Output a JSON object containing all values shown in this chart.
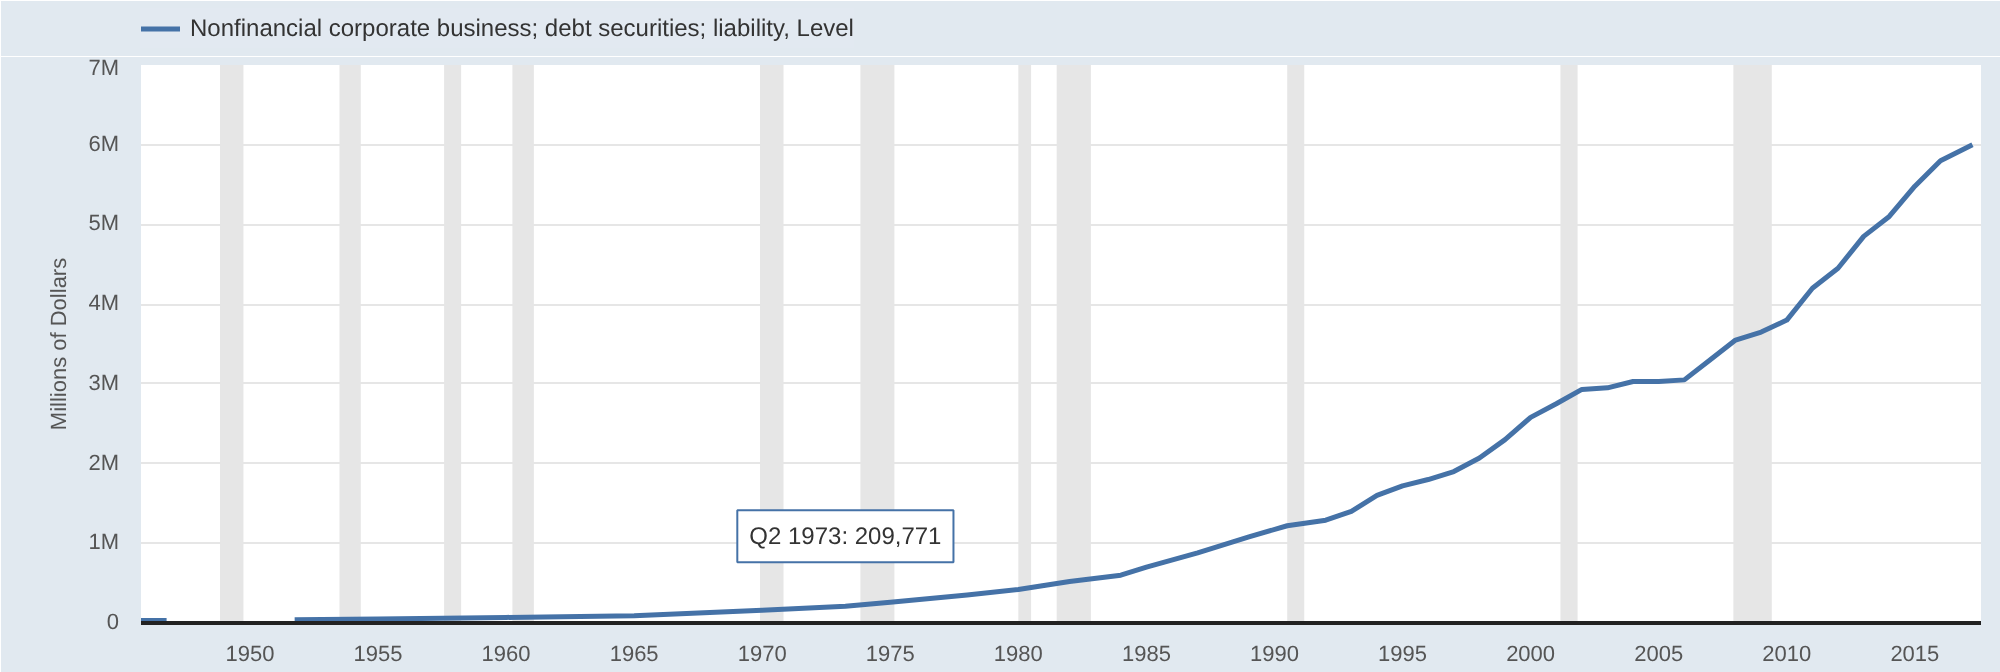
{
  "chart_data": {
    "type": "line",
    "ylabel": "Millions of Dollars",
    "x": [
      "1945-10",
      "1946-10",
      "1947-01",
      "1951-10",
      "1955-01",
      "1960-01",
      "1965-01",
      "1970-01",
      "1973-04",
      "1975-01",
      "1978-01",
      "1980-01",
      "1982-01",
      "1984-01",
      "1985-01",
      "1987-01",
      "1989-01",
      "1990-07",
      "1992-01",
      "1993-01",
      "1994-01",
      "1995-01",
      "1996-01",
      "1997-01",
      "1998-01",
      "1999-01",
      "2000-01",
      "2001-01",
      "2002-01",
      "2003-01",
      "2004-01",
      "2005-01",
      "2006-01",
      "2007-01",
      "2008-01",
      "2009-01",
      "2010-01",
      "2011-01",
      "2012-01",
      "2013-01",
      "2014-01",
      "2015-01",
      "2016-01",
      "2017-04"
    ],
    "series": [
      {
        "name": "Nonfinancial corporate business; debt securities; liability, Level",
        "color": "#4572a7",
        "values": [
          30000,
          30000,
          null,
          40000,
          50000,
          70000,
          90000,
          160000,
          209771,
          260000,
          350000,
          420000,
          520000,
          600000,
          700000,
          880000,
          1080000,
          1220000,
          1290000,
          1400000,
          1600000,
          1720000,
          1800000,
          1900000,
          2070000,
          2300000,
          2580000,
          2750000,
          2930000,
          2950000,
          3030000,
          3030000,
          3050000,
          3300000,
          3550000,
          3650000,
          3800000,
          4200000,
          4450000,
          4850000,
          5100000,
          5480000,
          5800000,
          6000000
        ]
      }
    ],
    "xlim": [
      "1945-10",
      "2017-08"
    ],
    "xticks": [
      "1950",
      "1955",
      "1960",
      "1965",
      "1970",
      "1975",
      "1980",
      "1985",
      "1990",
      "1995",
      "2000",
      "2005",
      "2010",
      "2015"
    ],
    "ylim": [
      0,
      7000000
    ],
    "yticks": [
      0,
      {
        "value": 1000000,
        "label": "1M"
      },
      {
        "value": 2000000,
        "label": "2M"
      },
      {
        "value": 3000000,
        "label": "3M"
      },
      {
        "value": 4000000,
        "label": "4M"
      },
      {
        "value": 5000000,
        "label": "5M"
      },
      {
        "value": 6000000,
        "label": "6M"
      },
      {
        "value": 7000000,
        "label": "7M"
      }
    ],
    "grid": "y",
    "legend": "top left",
    "line_style": "solid",
    "marker": "none",
    "bands": [
      {
        "axis": "x",
        "from": "1948-11",
        "to": "1949-10",
        "color": "#e6e6e6"
      },
      {
        "axis": "x",
        "from": "1953-07",
        "to": "1954-05",
        "color": "#e6e6e6"
      },
      {
        "axis": "x",
        "from": "1957-08",
        "to": "1958-04",
        "color": "#e6e6e6"
      },
      {
        "axis": "x",
        "from": "1960-04",
        "to": "1961-02",
        "color": "#e6e6e6"
      },
      {
        "axis": "x",
        "from": "1969-12",
        "to": "1970-11",
        "color": "#e6e6e6"
      },
      {
        "axis": "x",
        "from": "1973-11",
        "to": "1975-03",
        "color": "#e6e6e6"
      },
      {
        "axis": "x",
        "from": "1980-01",
        "to": "1980-07",
        "color": "#e6e6e6"
      },
      {
        "axis": "x",
        "from": "1981-07",
        "to": "1982-11",
        "color": "#e6e6e6"
      },
      {
        "axis": "x",
        "from": "1990-07",
        "to": "1991-03",
        "color": "#e6e6e6"
      },
      {
        "axis": "x",
        "from": "2001-03",
        "to": "2001-11",
        "color": "#e6e6e6"
      },
      {
        "axis": "x",
        "from": "2007-12",
        "to": "2009-06",
        "color": "#e6e6e6"
      }
    ],
    "annotations": [
      {
        "text": "Q2 1973: 209,771",
        "x": "1973-04",
        "y": 209771
      }
    ]
  }
}
